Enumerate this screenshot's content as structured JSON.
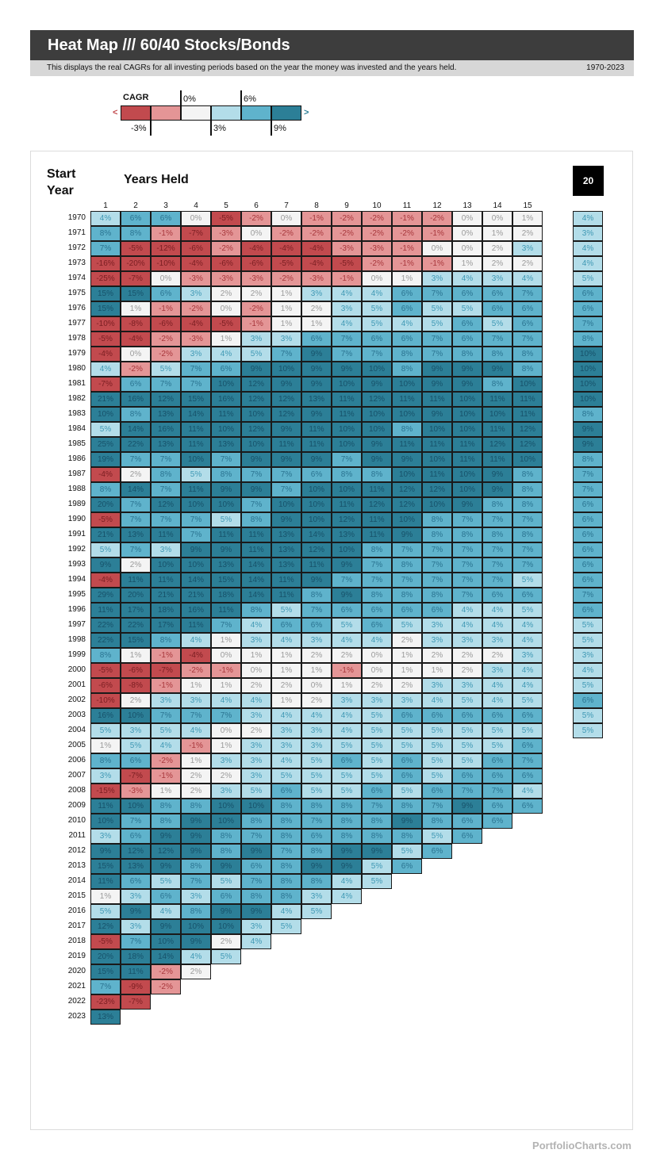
{
  "header": {
    "title": "Heat Map /// 60/40 Stocks/Bonds",
    "subtitle": "This displays the real CAGRs for all investing periods based on the year the money was invested and the years held.",
    "date_range": "1970-2023"
  },
  "legend": {
    "title": "CAGR",
    "less_symbol": "<",
    "greater_symbol": ">",
    "labels_top": [
      "0%",
      "6%"
    ],
    "labels_bottom": [
      "-3%",
      "3%",
      "9%"
    ],
    "colors": [
      "#c24a4e",
      "#e49596",
      "#f4f4f4",
      "#b3dde9",
      "#5fb3cc",
      "#2c7f97"
    ]
  },
  "axes": {
    "start_year_label": "Start\nYear",
    "years_held_label": "Years Held",
    "horizon_value": "20"
  },
  "footer": {
    "brand": "PortfolioCharts.com"
  },
  "chart_data": {
    "type": "heatmap",
    "title": "Heat Map /// 60/40 Stocks/Bonds",
    "xlabel": "Years Held",
    "ylabel": "Start Year",
    "x": [
      "1",
      "2",
      "3",
      "4",
      "5",
      "6",
      "7",
      "8",
      "9",
      "10",
      "11",
      "12",
      "13",
      "14",
      "15"
    ],
    "color_thresholds": [
      -3,
      0,
      3,
      6,
      9
    ],
    "rows": [
      {
        "year": "1970",
        "values": [
          4,
          6,
          6,
          0,
          -5,
          -2,
          0,
          -1,
          -2,
          -2,
          -1,
          -2,
          0,
          0,
          1
        ],
        "horizon20": 4
      },
      {
        "year": "1971",
        "values": [
          8,
          8,
          -1,
          -7,
          -3,
          0,
          -2,
          -2,
          -2,
          -2,
          -2,
          -1,
          0,
          1,
          2
        ],
        "horizon20": 3
      },
      {
        "year": "1972",
        "values": [
          7,
          -5,
          -12,
          -6,
          -2,
          -4,
          -4,
          -4,
          -3,
          -3,
          -1,
          0,
          0,
          2,
          3
        ],
        "horizon20": 4
      },
      {
        "year": "1973",
        "values": [
          -16,
          -20,
          -10,
          -4,
          -6,
          -6,
          -5,
          -4,
          -5,
          -2,
          -1,
          -1,
          1,
          2,
          2
        ],
        "horizon20": 4
      },
      {
        "year": "1974",
        "values": [
          -25,
          -7,
          0,
          -3,
          -3,
          -3,
          -2,
          -3,
          -1,
          0,
          1,
          3,
          4,
          3,
          4
        ],
        "horizon20": 5
      },
      {
        "year": "1975",
        "values": [
          15,
          15,
          6,
          3,
          2,
          2,
          1,
          3,
          4,
          4,
          6,
          7,
          6,
          6,
          7
        ],
        "horizon20": 6
      },
      {
        "year": "1976",
        "values": [
          15,
          1,
          -1,
          -2,
          0,
          -2,
          1,
          2,
          3,
          5,
          6,
          5,
          5,
          6,
          6
        ],
        "horizon20": 6
      },
      {
        "year": "1977",
        "values": [
          -10,
          -8,
          -6,
          -4,
          -5,
          -1,
          1,
          1,
          4,
          5,
          4,
          5,
          6,
          5,
          6
        ],
        "horizon20": 7
      },
      {
        "year": "1978",
        "values": [
          -5,
          -4,
          -2,
          -3,
          1,
          3,
          3,
          6,
          7,
          6,
          6,
          7,
          6,
          7,
          7
        ],
        "horizon20": 8
      },
      {
        "year": "1979",
        "values": [
          -4,
          0,
          -2,
          3,
          4,
          5,
          7,
          9,
          7,
          7,
          8,
          7,
          8,
          8,
          8
        ],
        "horizon20": 10
      },
      {
        "year": "1980",
        "values": [
          4,
          -2,
          5,
          7,
          6,
          9,
          10,
          9,
          9,
          10,
          8,
          9,
          9,
          9,
          8
        ],
        "horizon20": 10
      },
      {
        "year": "1981",
        "values": [
          -7,
          6,
          7,
          7,
          10,
          12,
          9,
          9,
          10,
          9,
          10,
          9,
          9,
          8,
          10
        ],
        "horizon20": 10
      },
      {
        "year": "1982",
        "values": [
          21,
          16,
          12,
          15,
          16,
          12,
          12,
          13,
          11,
          12,
          11,
          11,
          10,
          11,
          11
        ],
        "horizon20": 10
      },
      {
        "year": "1983",
        "values": [
          10,
          8,
          13,
          14,
          11,
          10,
          12,
          9,
          11,
          10,
          10,
          9,
          10,
          10,
          11
        ],
        "horizon20": 8
      },
      {
        "year": "1984",
        "values": [
          5,
          14,
          16,
          11,
          10,
          12,
          9,
          11,
          10,
          10,
          8,
          10,
          10,
          11,
          12
        ],
        "horizon20": 9
      },
      {
        "year": "1985",
        "values": [
          25,
          22,
          13,
          11,
          13,
          10,
          11,
          11,
          10,
          9,
          11,
          11,
          11,
          12,
          12
        ],
        "horizon20": 9
      },
      {
        "year": "1986",
        "values": [
          19,
          7,
          7,
          10,
          7,
          9,
          9,
          9,
          7,
          9,
          9,
          10,
          11,
          11,
          10
        ],
        "horizon20": 8
      },
      {
        "year": "1987",
        "values": [
          -4,
          2,
          8,
          5,
          8,
          7,
          7,
          6,
          8,
          8,
          10,
          11,
          10,
          9,
          8
        ],
        "horizon20": 7
      },
      {
        "year": "1988",
        "values": [
          8,
          14,
          7,
          11,
          9,
          9,
          7,
          10,
          10,
          11,
          12,
          12,
          10,
          9,
          8
        ],
        "horizon20": 7
      },
      {
        "year": "1989",
        "values": [
          20,
          7,
          12,
          10,
          10,
          7,
          10,
          10,
          11,
          12,
          12,
          10,
          9,
          8,
          8
        ],
        "horizon20": 6
      },
      {
        "year": "1990",
        "values": [
          -5,
          7,
          7,
          7,
          5,
          8,
          9,
          10,
          12,
          11,
          10,
          8,
          7,
          7,
          7
        ],
        "horizon20": 6
      },
      {
        "year": "1991",
        "values": [
          21,
          13,
          11,
          7,
          11,
          11,
          13,
          14,
          13,
          11,
          9,
          8,
          8,
          8,
          8
        ],
        "horizon20": 6
      },
      {
        "year": "1992",
        "values": [
          5,
          7,
          3,
          9,
          9,
          11,
          13,
          12,
          10,
          8,
          7,
          7,
          7,
          7,
          7
        ],
        "horizon20": 6
      },
      {
        "year": "1993",
        "values": [
          9,
          2,
          10,
          10,
          13,
          14,
          13,
          11,
          9,
          7,
          8,
          7,
          7,
          7,
          7
        ],
        "horizon20": 6
      },
      {
        "year": "1994",
        "values": [
          -4,
          11,
          11,
          14,
          15,
          14,
          11,
          9,
          7,
          7,
          7,
          7,
          7,
          7,
          5
        ],
        "horizon20": 6
      },
      {
        "year": "1995",
        "values": [
          29,
          20,
          21,
          21,
          18,
          14,
          11,
          8,
          9,
          8,
          8,
          8,
          7,
          6,
          6
        ],
        "horizon20": 7
      },
      {
        "year": "1996",
        "values": [
          11,
          17,
          18,
          16,
          11,
          8,
          5,
          7,
          6,
          6,
          6,
          6,
          4,
          4,
          5
        ],
        "horizon20": 6
      },
      {
        "year": "1997",
        "values": [
          22,
          22,
          17,
          11,
          7,
          4,
          6,
          6,
          5,
          6,
          5,
          3,
          4,
          4,
          4
        ],
        "horizon20": 5
      },
      {
        "year": "1998",
        "values": [
          22,
          15,
          8,
          4,
          1,
          3,
          4,
          3,
          4,
          4,
          2,
          3,
          3,
          3,
          4
        ],
        "horizon20": 5
      },
      {
        "year": "1999",
        "values": [
          8,
          1,
          -1,
          -4,
          0,
          1,
          1,
          2,
          2,
          0,
          1,
          2,
          2,
          2,
          3
        ],
        "horizon20": 3
      },
      {
        "year": "2000",
        "values": [
          -5,
          -6,
          -7,
          -2,
          -1,
          0,
          1,
          1,
          -1,
          0,
          1,
          1,
          2,
          3,
          4
        ],
        "horizon20": 4
      },
      {
        "year": "2001",
        "values": [
          -6,
          -8,
          -1,
          1,
          1,
          2,
          2,
          0,
          1,
          2,
          2,
          3,
          3,
          4,
          4
        ],
        "horizon20": 5
      },
      {
        "year": "2002",
        "values": [
          -10,
          2,
          3,
          3,
          4,
          4,
          1,
          2,
          3,
          3,
          3,
          4,
          5,
          4,
          5
        ],
        "horizon20": 6
      },
      {
        "year": "2003",
        "values": [
          16,
          10,
          7,
          7,
          7,
          3,
          4,
          4,
          4,
          5,
          6,
          6,
          6,
          6,
          6
        ],
        "horizon20": 5
      },
      {
        "year": "2004",
        "values": [
          5,
          3,
          5,
          4,
          0,
          2,
          3,
          3,
          4,
          5,
          5,
          5,
          5,
          5,
          5
        ],
        "horizon20": 5
      },
      {
        "year": "2005",
        "values": [
          1,
          5,
          4,
          -1,
          1,
          3,
          3,
          3,
          5,
          5,
          5,
          5,
          5,
          5,
          6
        ]
      },
      {
        "year": "2006",
        "values": [
          8,
          6,
          -2,
          1,
          3,
          3,
          4,
          5,
          6,
          5,
          6,
          5,
          5,
          6,
          7
        ]
      },
      {
        "year": "2007",
        "values": [
          3,
          -7,
          -1,
          2,
          2,
          3,
          5,
          5,
          5,
          5,
          6,
          5,
          6,
          6,
          6
        ]
      },
      {
        "year": "2008",
        "values": [
          -15,
          -3,
          1,
          2,
          3,
          5,
          6,
          5,
          5,
          6,
          5,
          6,
          7,
          7,
          4
        ]
      },
      {
        "year": "2009",
        "values": [
          11,
          10,
          8,
          8,
          10,
          10,
          8,
          8,
          8,
          7,
          8,
          7,
          9,
          6,
          6
        ]
      },
      {
        "year": "2010",
        "values": [
          10,
          7,
          8,
          9,
          10,
          8,
          8,
          7,
          8,
          8,
          9,
          8,
          6,
          6
        ]
      },
      {
        "year": "2011",
        "values": [
          3,
          6,
          9,
          9,
          8,
          7,
          8,
          6,
          8,
          8,
          8,
          5,
          6
        ]
      },
      {
        "year": "2012",
        "values": [
          9,
          12,
          12,
          9,
          8,
          9,
          7,
          8,
          9,
          9,
          5,
          6
        ]
      },
      {
        "year": "2013",
        "values": [
          15,
          13,
          9,
          8,
          9,
          6,
          8,
          9,
          9,
          5,
          6
        ]
      },
      {
        "year": "2014",
        "values": [
          11,
          6,
          5,
          7,
          5,
          7,
          8,
          8,
          4,
          5
        ]
      },
      {
        "year": "2015",
        "values": [
          1,
          3,
          6,
          3,
          6,
          8,
          8,
          3,
          4
        ]
      },
      {
        "year": "2016",
        "values": [
          5,
          9,
          4,
          8,
          9,
          9,
          4,
          5
        ]
      },
      {
        "year": "2017",
        "values": [
          12,
          3,
          9,
          10,
          10,
          3,
          5
        ]
      },
      {
        "year": "2018",
        "values": [
          -5,
          7,
          10,
          9,
          2,
          4
        ]
      },
      {
        "year": "2019",
        "values": [
          20,
          18,
          14,
          4,
          5
        ]
      },
      {
        "year": "2020",
        "values": [
          15,
          11,
          -2,
          2
        ]
      },
      {
        "year": "2021",
        "values": [
          7,
          -9,
          -2
        ]
      },
      {
        "year": "2022",
        "values": [
          -23,
          -7
        ]
      },
      {
        "year": "2023",
        "values": [
          13
        ]
      }
    ]
  }
}
